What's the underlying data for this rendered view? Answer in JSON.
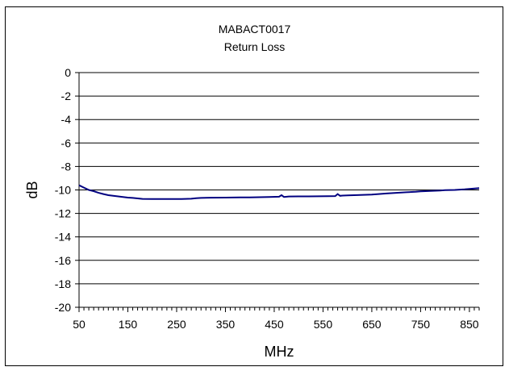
{
  "chart_data": {
    "type": "line",
    "title": "MABACT0017",
    "subtitle": "Return Loss",
    "xlabel": "MHz",
    "ylabel": "dB",
    "xlim": [
      50,
      870
    ],
    "ylim": [
      -20,
      0
    ],
    "xticks": [
      50,
      150,
      250,
      350,
      450,
      550,
      650,
      750,
      850
    ],
    "yticks": [
      0,
      -2,
      -4,
      -6,
      -8,
      -10,
      -12,
      -14,
      -16,
      -18,
      -20
    ],
    "grid": "horizontal",
    "legend": "none",
    "line_color": "#000080",
    "series": [
      {
        "x": [
          50,
          60,
          70,
          80,
          90,
          100,
          110,
          120,
          130,
          140,
          150,
          160,
          170,
          180,
          200,
          220,
          240,
          260,
          280,
          290,
          300,
          320,
          350,
          380,
          400,
          420,
          440,
          460,
          465,
          470,
          480,
          500,
          520,
          540,
          560,
          575,
          580,
          585,
          590,
          600,
          620,
          650,
          680,
          700,
          720,
          740,
          750,
          770,
          790,
          800,
          820,
          840,
          860,
          870
        ],
        "y": [
          -9.6,
          -9.8,
          -10.0,
          -10.1,
          -10.25,
          -10.35,
          -10.45,
          -10.5,
          -10.55,
          -10.6,
          -10.65,
          -10.68,
          -10.72,
          -10.76,
          -10.77,
          -10.78,
          -10.78,
          -10.78,
          -10.75,
          -10.7,
          -10.68,
          -10.66,
          -10.65,
          -10.64,
          -10.63,
          -10.62,
          -10.6,
          -10.58,
          -10.45,
          -10.6,
          -10.56,
          -10.55,
          -10.55,
          -10.54,
          -10.53,
          -10.52,
          -10.35,
          -10.5,
          -10.48,
          -10.46,
          -10.44,
          -10.4,
          -10.3,
          -10.25,
          -10.2,
          -10.15,
          -10.12,
          -10.08,
          -10.05,
          -10.02,
          -10.0,
          -9.95,
          -9.88,
          -9.85
        ]
      }
    ]
  }
}
